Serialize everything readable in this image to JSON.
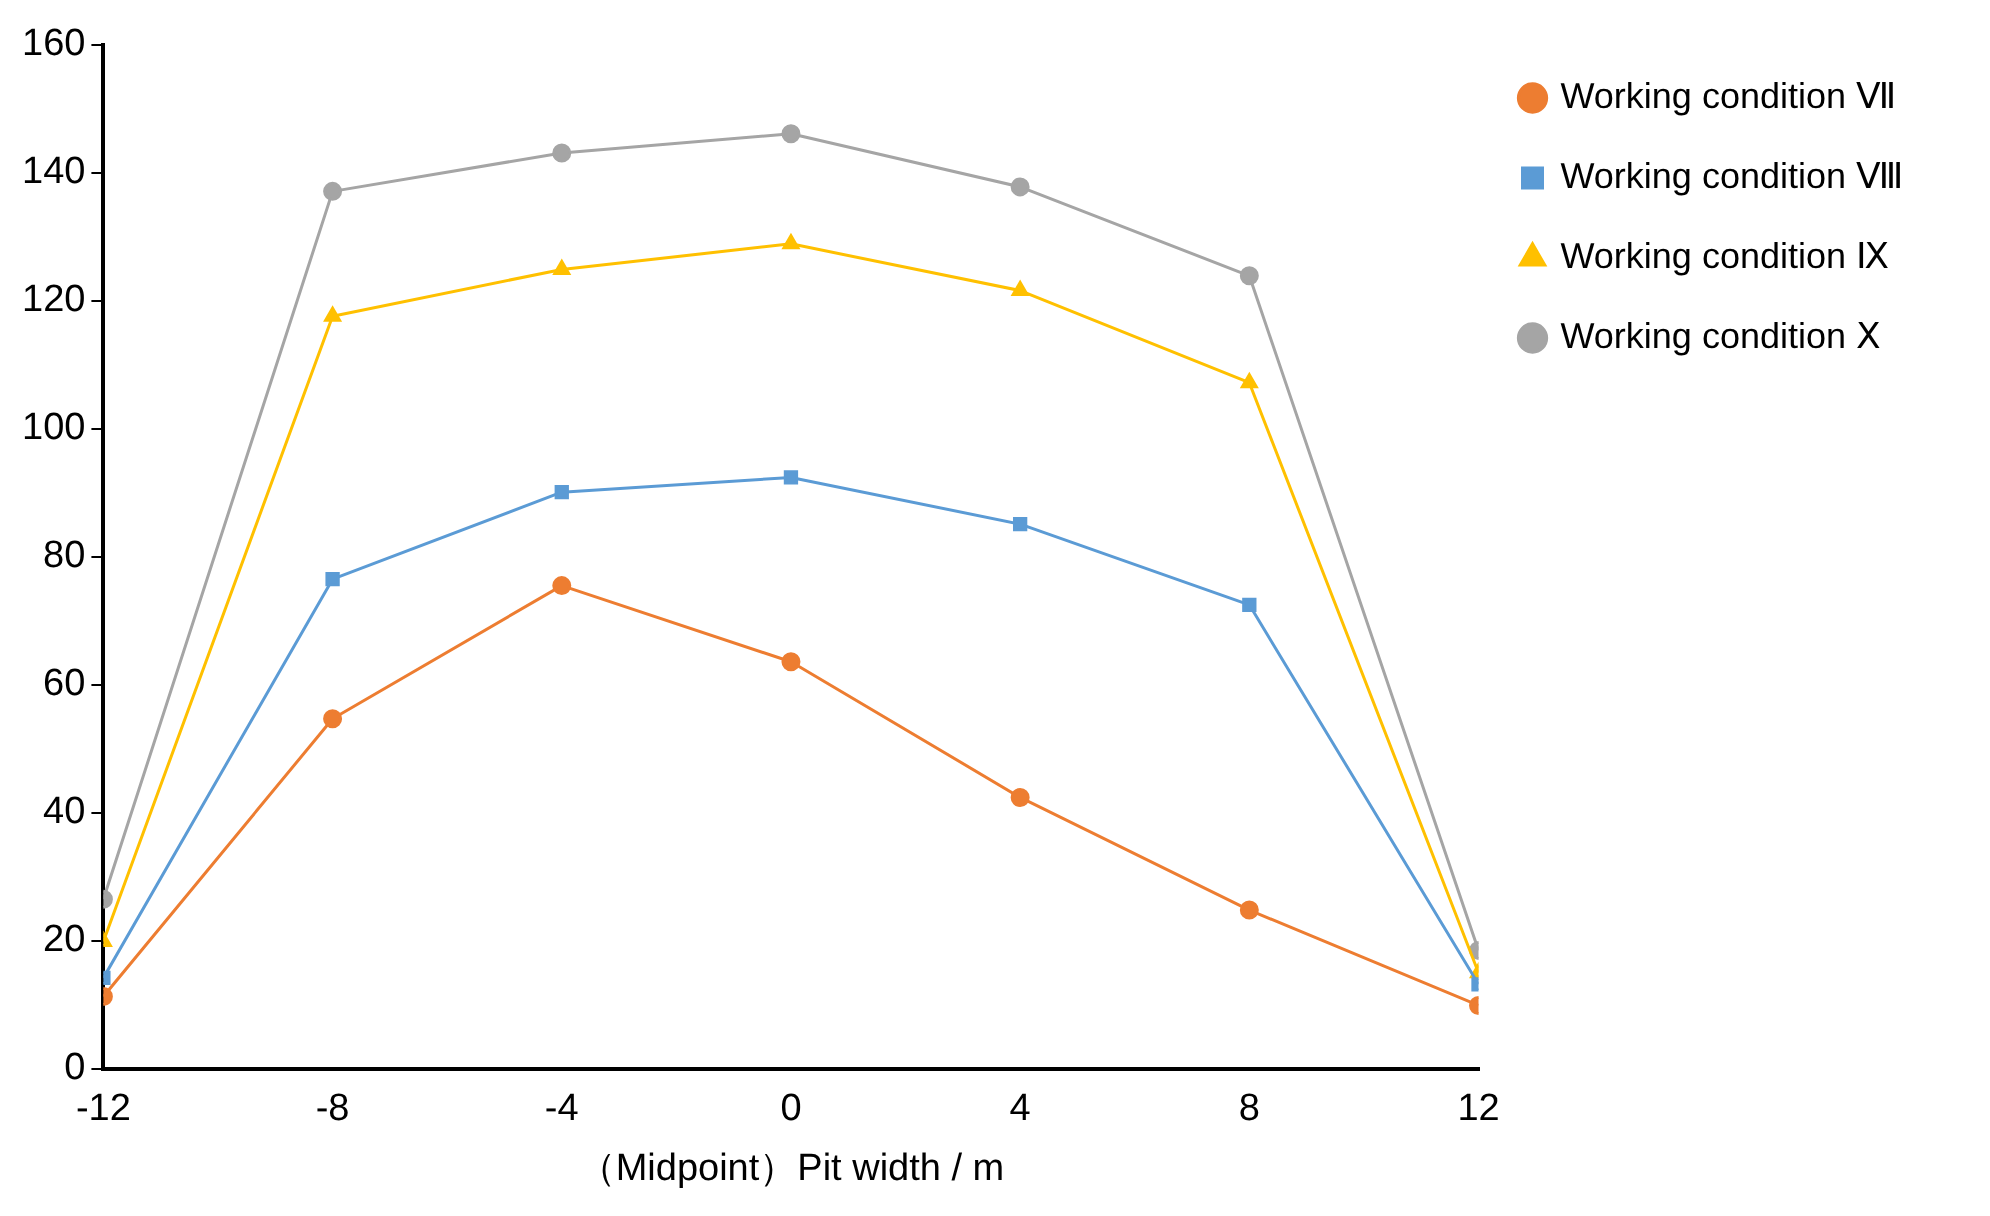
{
  "chart_data": {
    "type": "line",
    "xlabel": "（Midpoint）Pit width / m",
    "x": [
      -12,
      -8,
      -4,
      0,
      4,
      8,
      12
    ],
    "xlim": [
      -12,
      12
    ],
    "xticks": [
      -12,
      -8,
      -4,
      0,
      4,
      8,
      12
    ],
    "ylim": [
      0,
      160
    ],
    "yticks": [
      0,
      20,
      40,
      60,
      80,
      100,
      120,
      140,
      160
    ],
    "grid": false,
    "legend": "top right",
    "series": [
      {
        "name": "Working condition Ⅶ",
        "color": "#ed7d31",
        "marker": "circle",
        "values": [
          11.3,
          54.7,
          75.5,
          63.6,
          42.4,
          24.8,
          9.9
        ]
      },
      {
        "name": "Working condition Ⅷ",
        "color": "#5b9bd5",
        "marker": "square",
        "values": [
          14.2,
          76.5,
          90.1,
          92.4,
          85.1,
          72.5,
          13.2
        ]
      },
      {
        "name": "Working condition Ⅸ",
        "color": "#ffc000",
        "marker": "triangle",
        "values": [
          19.9,
          117.6,
          124.9,
          128.9,
          121.6,
          107.2,
          15.0
        ]
      },
      {
        "name": "Working condition Ⅹ",
        "color": "#a5a5a5",
        "marker": "circle",
        "values": [
          26.5,
          137.1,
          143.1,
          146.1,
          137.8,
          123.9,
          18.5
        ]
      }
    ]
  }
}
